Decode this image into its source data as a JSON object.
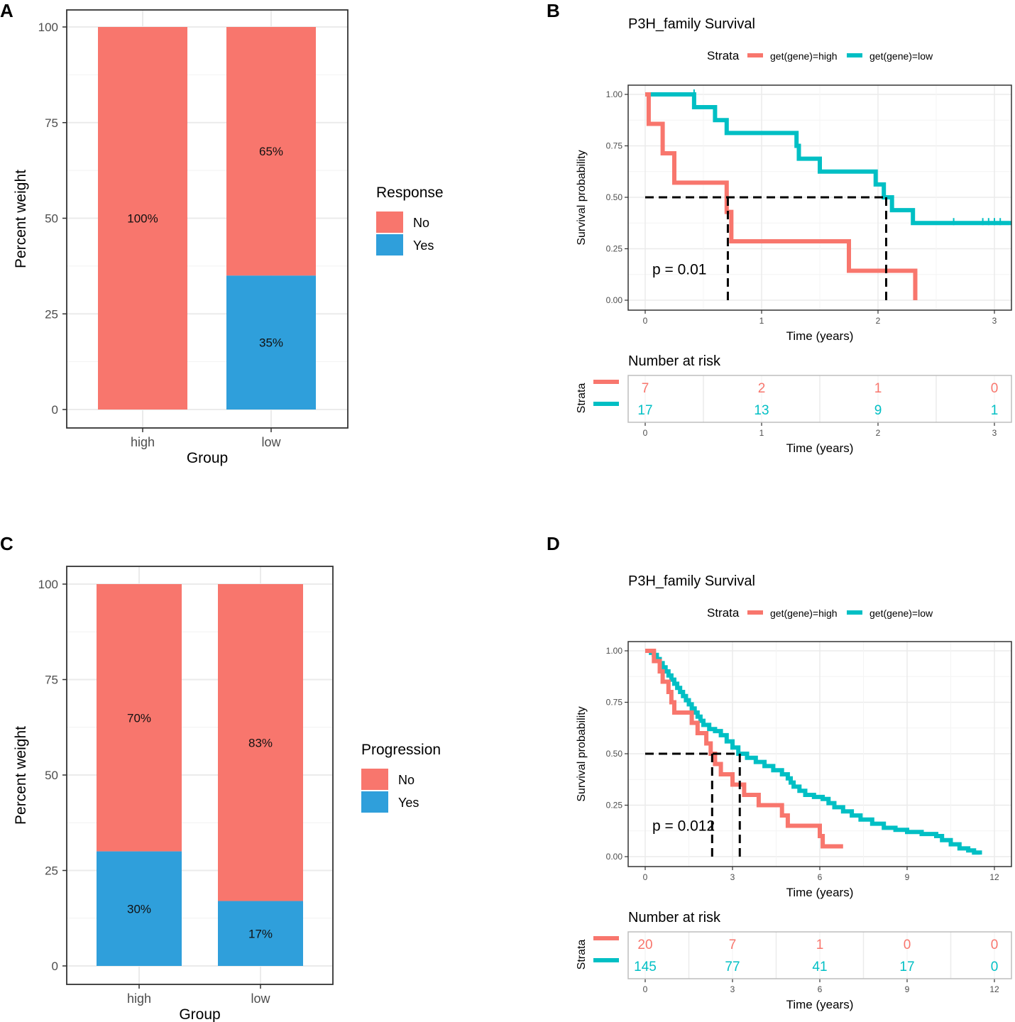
{
  "colors": {
    "no": "#F8766D",
    "yes": "#2F9FDB",
    "high": "#F8766D",
    "low": "#00BFC4",
    "frame": "#333333",
    "grid": "#EBEBEB",
    "tick": "#4D4D4D"
  },
  "chart_data": [
    {
      "panel": "A",
      "type": "bar",
      "stacked": true,
      "categories": [
        "high",
        "low"
      ],
      "xlabel": "Group",
      "ylabel": "Percent weight",
      "ylim": [
        0,
        100
      ],
      "yticks": [
        "0",
        "25",
        "50",
        "75",
        "100"
      ],
      "legend_title": "Response",
      "series": [
        {
          "name": "No",
          "values": [
            100,
            65
          ],
          "labels": [
            "100%",
            "65%"
          ]
        },
        {
          "name": "Yes",
          "values": [
            0,
            35
          ],
          "labels": [
            "",
            "35%"
          ]
        }
      ]
    },
    {
      "panel": "B",
      "type": "line",
      "title": "P3H_family Survival",
      "legend_title": "Strata",
      "legend": [
        "get(gene)=high",
        "get(gene)=low"
      ],
      "xlabel": "Time (years)",
      "ylabel": "Survival probability",
      "xlim": [
        0,
        3.15
      ],
      "ylim": [
        0,
        1
      ],
      "xticks": [
        "0",
        "1",
        "2",
        "3"
      ],
      "yticks": [
        "0.00",
        "0.25",
        "0.50",
        "0.75",
        "1.00"
      ],
      "pvalue": "p = 0.01",
      "series": [
        {
          "name": "get(gene)=high",
          "steps": [
            [
              0,
              1
            ],
            [
              0.03,
              0.857
            ],
            [
              0.15,
              0.714
            ],
            [
              0.25,
              0.571
            ],
            [
              0.7,
              0.429
            ],
            [
              0.74,
              0.286
            ],
            [
              1.75,
              0.143
            ],
            [
              2.32,
              0.0
            ]
          ],
          "end": 2.32
        },
        {
          "name": "get(gene)=low",
          "steps": [
            [
              0,
              1
            ],
            [
              0.42,
              0.938
            ],
            [
              0.6,
              0.875
            ],
            [
              0.7,
              0.8125
            ],
            [
              1.3,
              0.75
            ],
            [
              1.32,
              0.6875
            ],
            [
              1.5,
              0.625
            ],
            [
              1.98,
              0.5625
            ],
            [
              2.05,
              0.5
            ],
            [
              2.12,
              0.4375
            ],
            [
              2.3,
              0.375
            ]
          ],
          "end": 3.15,
          "censor": [
            0.42,
            2.65,
            2.9,
            2.95,
            3.0,
            3.05
          ]
        }
      ],
      "median_lines": [
        0.71,
        2.07
      ],
      "risk_table": {
        "title": "Number at risk",
        "ylabel": "Strata",
        "xlabel": "Time (years)",
        "xticks": [
          "0",
          "1",
          "2",
          "3"
        ],
        "high": [
          "7",
          "2",
          "1",
          "0"
        ],
        "low": [
          "17",
          "13",
          "9",
          "1"
        ]
      }
    },
    {
      "panel": "C",
      "type": "bar",
      "stacked": true,
      "categories": [
        "high",
        "low"
      ],
      "xlabel": "Group",
      "ylabel": "Percent weight",
      "ylim": [
        0,
        100
      ],
      "yticks": [
        "0",
        "25",
        "50",
        "75",
        "100"
      ],
      "legend_title": "Progression",
      "series": [
        {
          "name": "No",
          "values": [
            70,
            83
          ],
          "labels": [
            "70%",
            "83%"
          ]
        },
        {
          "name": "Yes",
          "values": [
            30,
            17
          ],
          "labels": [
            "30%",
            "17%"
          ]
        }
      ]
    },
    {
      "panel": "D",
      "type": "line",
      "title": "P3H_family Survival",
      "legend_title": "Strata",
      "legend": [
        "get(gene)=high",
        "get(gene)=low"
      ],
      "xlabel": "Time (years)",
      "ylabel": "Survival probability",
      "xlim": [
        0,
        12
      ],
      "ylim": [
        0,
        1
      ],
      "xticks": [
        "0",
        "3",
        "6",
        "9",
        "12"
      ],
      "yticks": [
        "0.00",
        "0.25",
        "0.50",
        "0.75",
        "1.00"
      ],
      "pvalue": "p = 0.012",
      "series": [
        {
          "name": "get(gene)=high",
          "steps": [
            [
              0,
              1
            ],
            [
              0.3,
              0.95
            ],
            [
              0.5,
              0.9
            ],
            [
              0.6,
              0.85
            ],
            [
              0.8,
              0.8
            ],
            [
              0.9,
              0.75
            ],
            [
              1.0,
              0.7
            ],
            [
              1.6,
              0.65
            ],
            [
              1.8,
              0.6
            ],
            [
              2.1,
              0.55
            ],
            [
              2.25,
              0.5
            ],
            [
              2.4,
              0.45
            ],
            [
              2.6,
              0.4
            ],
            [
              3.0,
              0.35
            ],
            [
              3.4,
              0.3
            ],
            [
              3.9,
              0.25
            ],
            [
              4.7,
              0.2
            ],
            [
              4.9,
              0.15
            ],
            [
              6.0,
              0.1
            ],
            [
              6.1,
              0.05
            ]
          ],
          "end": 6.8
        },
        {
          "name": "get(gene)=low",
          "points": [
            [
              0,
              1
            ],
            [
              0.2,
              0.99
            ],
            [
              0.3,
              0.98
            ],
            [
              0.4,
              0.96
            ],
            [
              0.5,
              0.94
            ],
            [
              0.6,
              0.92
            ],
            [
              0.7,
              0.9
            ],
            [
              0.8,
              0.88
            ],
            [
              0.9,
              0.86
            ],
            [
              1.0,
              0.84
            ],
            [
              1.1,
              0.82
            ],
            [
              1.2,
              0.8
            ],
            [
              1.3,
              0.78
            ],
            [
              1.4,
              0.76
            ],
            [
              1.5,
              0.74
            ],
            [
              1.6,
              0.72
            ],
            [
              1.7,
              0.7
            ],
            [
              1.8,
              0.68
            ],
            [
              1.9,
              0.66
            ],
            [
              2.0,
              0.64
            ],
            [
              2.2,
              0.62
            ],
            [
              2.4,
              0.61
            ],
            [
              2.6,
              0.59
            ],
            [
              2.8,
              0.56
            ],
            [
              3.0,
              0.53
            ],
            [
              3.2,
              0.5
            ],
            [
              3.5,
              0.48
            ],
            [
              3.8,
              0.46
            ],
            [
              4.1,
              0.44
            ],
            [
              4.4,
              0.42
            ],
            [
              4.7,
              0.4
            ],
            [
              4.9,
              0.38
            ],
            [
              5.0,
              0.36
            ],
            [
              5.1,
              0.34
            ],
            [
              5.3,
              0.32
            ],
            [
              5.5,
              0.3
            ],
            [
              5.8,
              0.29
            ],
            [
              6.1,
              0.28
            ],
            [
              6.3,
              0.26
            ],
            [
              6.5,
              0.24
            ],
            [
              6.8,
              0.22
            ],
            [
              7.1,
              0.2
            ],
            [
              7.4,
              0.18
            ],
            [
              7.8,
              0.16
            ],
            [
              8.2,
              0.14
            ],
            [
              8.6,
              0.13
            ],
            [
              9.0,
              0.12
            ],
            [
              9.5,
              0.11
            ],
            [
              10.0,
              0.1
            ],
            [
              10.2,
              0.08
            ],
            [
              10.5,
              0.06
            ],
            [
              10.8,
              0.04
            ],
            [
              11.1,
              0.03
            ],
            [
              11.3,
              0.02
            ],
            [
              11.5,
              0.01
            ]
          ],
          "end": 11.5
        }
      ],
      "median_lines": [
        2.3,
        3.25
      ],
      "risk_table": {
        "title": "Number at risk",
        "ylabel": "Strata",
        "xlabel": "Time (years)",
        "xticks": [
          "0",
          "3",
          "6",
          "9",
          "12"
        ],
        "high": [
          "20",
          "7",
          "1",
          "0",
          "0"
        ],
        "low": [
          "145",
          "77",
          "41",
          "17",
          "0"
        ]
      }
    }
  ],
  "panel_labels": [
    "A",
    "B",
    "C",
    "D"
  ]
}
